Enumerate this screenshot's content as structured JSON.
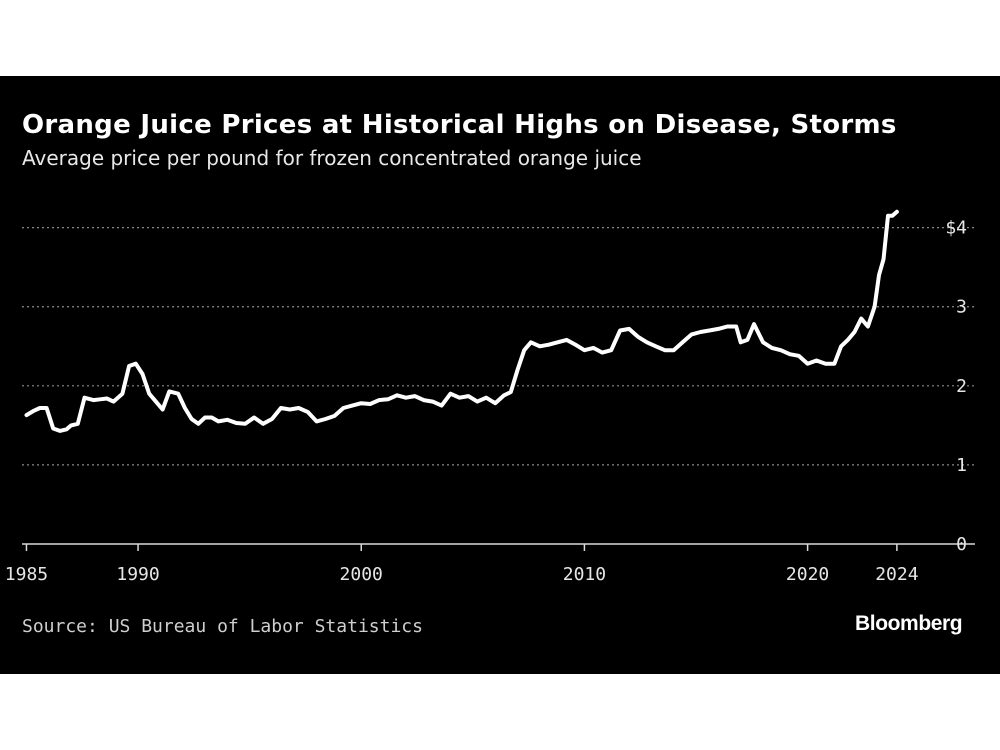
{
  "chart_data": {
    "type": "line",
    "title": "Orange Juice Prices at Historical Highs on Disease, Storms",
    "subtitle": "Average price per pound for frozen concentrated orange juice",
    "xlabel": "",
    "ylabel": "",
    "xlim": [
      1984.8,
      2027.5
    ],
    "ylim": [
      0,
      4.4
    ],
    "x_ticks": [
      1985,
      1990,
      2000,
      2010,
      2020,
      2024
    ],
    "x_tick_labels": [
      "1985",
      "1990",
      "2000",
      "2010",
      "2020",
      "2024"
    ],
    "y_ticks": [
      0,
      1,
      2,
      3,
      4
    ],
    "y_tick_labels": [
      "0",
      "1",
      "2",
      "3",
      "$4"
    ],
    "grid": "horizontal-dotted",
    "line_color": "#ffffff",
    "series": [
      {
        "x": [
          1985.0,
          1985.3,
          1985.6,
          1985.9,
          1986.2,
          1986.5,
          1986.8,
          1987.0,
          1987.3,
          1987.6,
          1988.0,
          1988.3,
          1988.6,
          1988.9,
          1989.3,
          1989.6,
          1989.9,
          1990.2,
          1990.5,
          1990.8,
          1991.1,
          1991.4,
          1991.8,
          1992.1,
          1992.4,
          1992.7,
          1993.0,
          1993.3,
          1993.6,
          1994.0,
          1994.4,
          1994.8,
          1995.2,
          1995.6,
          1996.0,
          1996.4,
          1996.8,
          1997.2,
          1997.6,
          1998.0,
          1998.4,
          1998.8,
          1999.2,
          1999.6,
          2000.0,
          2000.4,
          2000.8,
          2001.2,
          2001.6,
          2002.0,
          2002.4,
          2002.8,
          2003.2,
          2003.6,
          2004.0,
          2004.4,
          2004.8,
          2005.2,
          2005.6,
          2006.0,
          2006.4,
          2006.7,
          2007.0,
          2007.3,
          2007.6,
          2008.0,
          2008.4,
          2008.8,
          2009.2,
          2009.6,
          2010.0,
          2010.4,
          2010.8,
          2011.2,
          2011.6,
          2012.0,
          2012.4,
          2012.8,
          2013.2,
          2013.6,
          2014.0,
          2014.4,
          2014.8,
          2015.2,
          2015.6,
          2016.0,
          2016.4,
          2016.8,
          2017.0,
          2017.3,
          2017.6,
          2018.0,
          2018.4,
          2018.8,
          2019.2,
          2019.6,
          2020.0,
          2020.4,
          2020.8,
          2021.2,
          2021.5,
          2021.8,
          2022.1,
          2022.4,
          2022.7,
          2023.0,
          2023.2,
          2023.4,
          2023.6,
          2023.8,
          2024.0
        ],
        "values": [
          1.63,
          1.68,
          1.72,
          1.72,
          1.46,
          1.43,
          1.45,
          1.5,
          1.52,
          1.85,
          1.82,
          1.83,
          1.84,
          1.8,
          1.9,
          2.25,
          2.28,
          2.15,
          1.9,
          1.8,
          1.7,
          1.93,
          1.9,
          1.72,
          1.58,
          1.52,
          1.6,
          1.6,
          1.55,
          1.57,
          1.53,
          1.52,
          1.6,
          1.52,
          1.58,
          1.72,
          1.7,
          1.72,
          1.67,
          1.55,
          1.58,
          1.62,
          1.72,
          1.75,
          1.78,
          1.77,
          1.82,
          1.83,
          1.88,
          1.85,
          1.87,
          1.82,
          1.8,
          1.75,
          1.9,
          1.85,
          1.87,
          1.8,
          1.85,
          1.78,
          1.88,
          1.92,
          2.2,
          2.45,
          2.55,
          2.5,
          2.52,
          2.55,
          2.58,
          2.52,
          2.45,
          2.48,
          2.42,
          2.45,
          2.7,
          2.72,
          2.62,
          2.55,
          2.5,
          2.45,
          2.45,
          2.55,
          2.65,
          2.68,
          2.7,
          2.72,
          2.75,
          2.75,
          2.55,
          2.58,
          2.78,
          2.55,
          2.48,
          2.45,
          2.4,
          2.38,
          2.28,
          2.32,
          2.28,
          2.28,
          2.5,
          2.58,
          2.68,
          2.85,
          2.75,
          3.0,
          3.4,
          3.6,
          4.15,
          4.15,
          4.2
        ]
      }
    ]
  },
  "source_text": "Source: US Bureau of Labor Statistics",
  "brand": "Bloomberg"
}
